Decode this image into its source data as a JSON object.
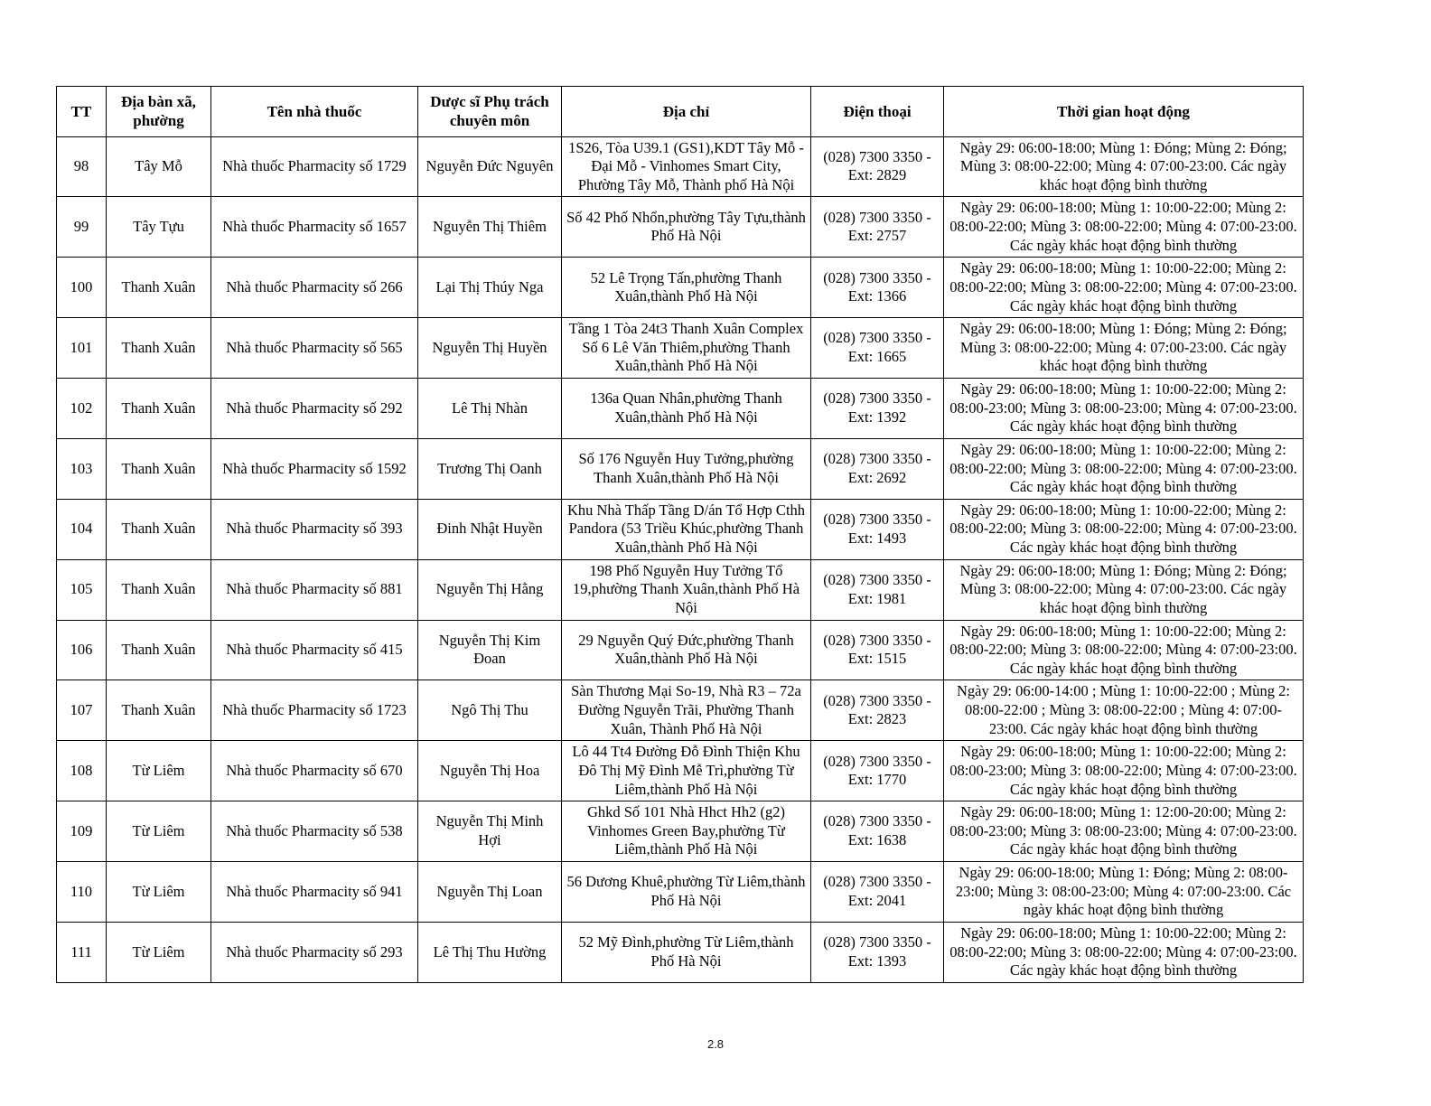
{
  "page": {
    "footer_page_number": "2.8"
  },
  "table": {
    "headers": {
      "tt": "TT",
      "ward": "Địa bàn xã, phường",
      "pharmacy": "Tên nhà thuốc",
      "pharmacist": "Dược sĩ Phụ trách chuyên môn",
      "address": "Địa chỉ",
      "phone": "Điện thoại",
      "hours": "Thời gian hoạt động"
    },
    "rows": [
      {
        "tt": "98",
        "ward": "Tây Mỗ",
        "pharmacy": "Nhà thuốc Pharmacity số 1729",
        "pharmacist": "Nguyễn Đức Nguyên",
        "address": "1S26, Tòa U39.1 (GS1),KDT Tây Mỗ - Đại Mỗ - Vinhomes Smart City, Phường Tây Mỗ, Thành phố Hà Nội",
        "phone": "(028) 7300 3350 - Ext: 2829",
        "hours": "Ngày 29: 06:00-18:00; Mùng 1: Đóng; Mùng 2: Đóng; Mùng 3: 08:00-22:00; Mùng 4: 07:00-23:00. Các ngày khác hoạt động bình thường"
      },
      {
        "tt": "99",
        "ward": "Tây Tựu",
        "pharmacy": "Nhà thuốc Pharmacity số 1657",
        "pharmacist": "Nguyễn Thị Thiêm",
        "address": "Số 42 Phố Nhổn,phường Tây Tựu,thành Phố Hà Nội",
        "phone": "(028) 7300 3350 - Ext: 2757",
        "hours": "Ngày 29: 06:00-18:00; Mùng 1: 10:00-22:00; Mùng 2: 08:00-22:00; Mùng 3: 08:00-22:00; Mùng 4: 07:00-23:00. Các ngày khác hoạt động bình thường"
      },
      {
        "tt": "100",
        "ward": "Thanh Xuân",
        "pharmacy": "Nhà thuốc Pharmacity số 266",
        "pharmacist": "Lại Thị Thúy Nga",
        "address": "52 Lê Trọng Tấn,phường Thanh Xuân,thành Phố Hà Nội",
        "phone": "(028) 7300 3350 - Ext: 1366",
        "hours": "Ngày 29: 06:00-18:00; Mùng 1: 10:00-22:00; Mùng 2: 08:00-22:00; Mùng 3: 08:00-22:00; Mùng 4: 07:00-23:00. Các ngày khác hoạt động bình thường"
      },
      {
        "tt": "101",
        "ward": "Thanh Xuân",
        "pharmacy": "Nhà thuốc Pharmacity số 565",
        "pharmacist": "Nguyễn Thị Huyền",
        "address": "Tầng 1 Tòa 24t3 Thanh Xuân Complex Số 6 Lê Văn Thiêm,phường Thanh Xuân,thành Phố Hà Nội",
        "phone": "(028) 7300 3350 - Ext: 1665",
        "hours": "Ngày 29: 06:00-18:00; Mùng 1: Đóng; Mùng 2: Đóng; Mùng 3: 08:00-22:00; Mùng 4: 07:00-23:00. Các ngày khác hoạt động bình thường"
      },
      {
        "tt": "102",
        "ward": "Thanh Xuân",
        "pharmacy": "Nhà thuốc Pharmacity số 292",
        "pharmacist": "Lê Thị Nhàn",
        "address": "136a Quan Nhân,phường Thanh Xuân,thành Phố Hà Nội",
        "phone": "(028) 7300 3350 - Ext: 1392",
        "hours": "Ngày 29: 06:00-18:00; Mùng 1: 10:00-22:00; Mùng 2: 08:00-23:00; Mùng 3: 08:00-23:00; Mùng 4: 07:00-23:00. Các ngày khác hoạt động bình thường"
      },
      {
        "tt": "103",
        "ward": "Thanh Xuân",
        "pharmacy": "Nhà thuốc Pharmacity số 1592",
        "pharmacist": "Trương Thị Oanh",
        "address": "Số 176 Nguyễn Huy Tưởng,phường Thanh Xuân,thành Phố Hà Nội",
        "phone": "(028) 7300 3350 - Ext: 2692",
        "hours": "Ngày 29: 06:00-18:00; Mùng 1: 10:00-22:00; Mùng 2: 08:00-22:00; Mùng 3: 08:00-22:00; Mùng 4: 07:00-23:00. Các ngày khác hoạt động bình thường"
      },
      {
        "tt": "104",
        "ward": "Thanh Xuân",
        "pharmacy": "Nhà thuốc Pharmacity số 393",
        "pharmacist": "Đinh Nhật Huyền",
        "address": "Khu Nhà Thấp Tầng D/án Tổ Hợp Cthh Pandora (53 Triều Khúc,phường Thanh Xuân,thành Phố Hà Nội",
        "phone": "(028) 7300 3350 - Ext: 1493",
        "hours": "Ngày 29: 06:00-18:00; Mùng 1: 10:00-22:00; Mùng 2: 08:00-22:00; Mùng 3: 08:00-22:00; Mùng 4: 07:00-23:00. Các ngày khác hoạt động bình thường"
      },
      {
        "tt": "105",
        "ward": "Thanh Xuân",
        "pharmacy": "Nhà thuốc Pharmacity số 881",
        "pharmacist": "Nguyễn Thị Hằng",
        "address": "198 Phố Nguyễn Huy Tưởng Tổ 19,phường Thanh Xuân,thành Phố Hà Nội",
        "phone": "(028) 7300 3350 - Ext: 1981",
        "hours": "Ngày 29: 06:00-18:00; Mùng 1: Đóng; Mùng 2: Đóng; Mùng 3: 08:00-22:00; Mùng 4: 07:00-23:00. Các ngày khác hoạt động bình thường"
      },
      {
        "tt": "106",
        "ward": "Thanh Xuân",
        "pharmacy": "Nhà thuốc Pharmacity số 415",
        "pharmacist": "Nguyễn Thị Kim Đoan",
        "address": "29 Nguyễn Quý Đức,phường Thanh Xuân,thành Phố Hà Nội",
        "phone": "(028) 7300 3350 - Ext: 1515",
        "hours": "Ngày 29: 06:00-18:00; Mùng 1: 10:00-22:00; Mùng 2: 08:00-22:00; Mùng 3: 08:00-22:00; Mùng 4: 07:00-23:00. Các ngày khác hoạt động bình thường"
      },
      {
        "tt": "107",
        "ward": "Thanh Xuân",
        "pharmacy": "Nhà thuốc Pharmacity số 1723",
        "pharmacist": "Ngô Thị Thu",
        "address": "Sàn Thương Mại So-19, Nhà R3 – 72a Đường Nguyễn Trãi, Phường Thanh Xuân, Thành Phố Hà Nội",
        "phone": "(028) 7300 3350 - Ext: 2823",
        "hours": "Ngày 29: 06:00-14:00 ; Mùng 1: 10:00-22:00 ; Mùng 2: 08:00-22:00 ; Mùng 3: 08:00-22:00 ; Mùng 4: 07:00-23:00. Các ngày khác hoạt động bình thường"
      },
      {
        "tt": "108",
        "ward": "Từ Liêm",
        "pharmacy": "Nhà thuốc Pharmacity số 670",
        "pharmacist": "Nguyễn Thị Hoa",
        "address": "Lô 44 Tt4 Đường Đỗ Đình Thiện Khu Đô Thị Mỹ Đình Mễ Trì,phường Từ Liêm,thành Phố Hà Nội",
        "phone": "(028) 7300 3350 - Ext: 1770",
        "hours": "Ngày 29: 06:00-18:00; Mùng 1: 10:00-22:00; Mùng 2: 08:00-23:00; Mùng 3: 08:00-22:00; Mùng 4: 07:00-23:00. Các ngày khác hoạt động bình thường"
      },
      {
        "tt": "109",
        "ward": "Từ Liêm",
        "pharmacy": "Nhà thuốc Pharmacity số 538",
        "pharmacist": "Nguyễn Thị Minh Hợi",
        "address": "Ghkd Số 101 Nhà Hhct Hh2 (g2) Vinhomes Green Bay,phường Từ Liêm,thành Phố Hà Nội",
        "phone": "(028) 7300 3350 - Ext: 1638",
        "hours": "Ngày 29: 06:00-18:00; Mùng 1: 12:00-20:00; Mùng 2: 08:00-23:00; Mùng 3: 08:00-23:00; Mùng 4: 07:00-23:00. Các ngày khác hoạt động bình thường"
      },
      {
        "tt": "110",
        "ward": "Từ Liêm",
        "pharmacy": "Nhà thuốc Pharmacity số 941",
        "pharmacist": "Nguyễn Thị Loan",
        "address": "56 Dương Khuê,phường Từ Liêm,thành Phố Hà Nội",
        "phone": "(028) 7300 3350 - Ext: 2041",
        "hours": "Ngày 29: 06:00-18:00; Mùng 1: Đóng; Mùng 2: 08:00-23:00; Mùng 3: 08:00-23:00; Mùng 4: 07:00-23:00. Các ngày khác hoạt động bình thường"
      },
      {
        "tt": "111",
        "ward": "Từ Liêm",
        "pharmacy": "Nhà thuốc Pharmacity số 293",
        "pharmacist": "Lê Thị Thu Hường",
        "address": "52 Mỹ Đình,phường Từ Liêm,thành Phố Hà Nội",
        "phone": "(028) 7300 3350 - Ext: 1393",
        "hours": "Ngày 29: 06:00-18:00; Mùng 1: 10:00-22:00; Mùng 2: 08:00-22:00; Mùng 3: 08:00-22:00; Mùng 4: 07:00-23:00. Các ngày khác hoạt động bình thường"
      }
    ]
  }
}
